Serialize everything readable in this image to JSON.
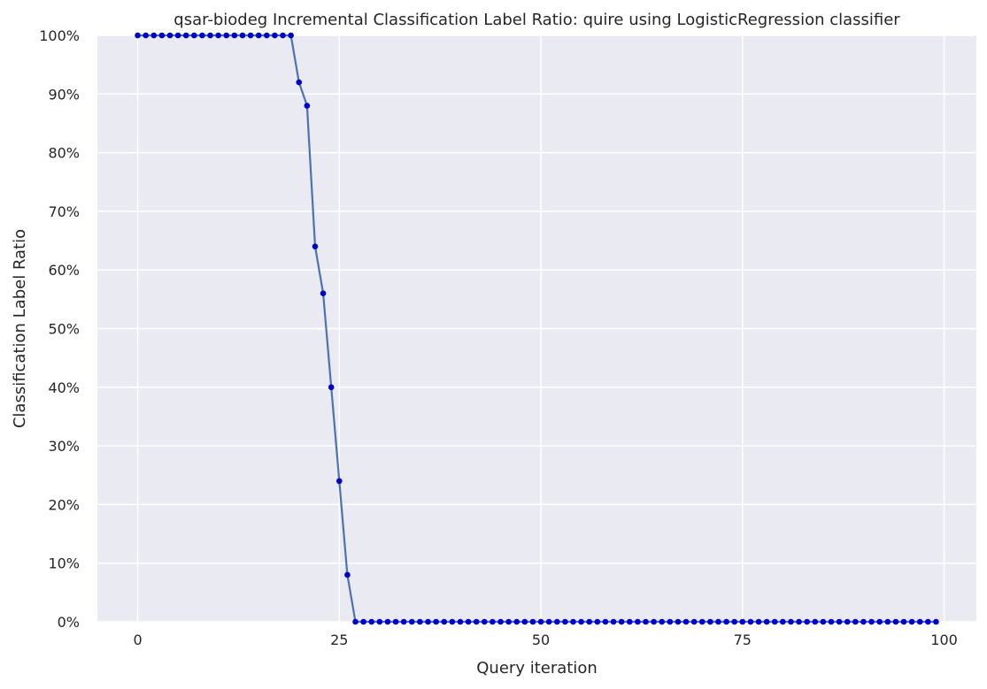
{
  "chart_data": {
    "type": "line",
    "title": "qsar-biodeg Incremental Classification Label Ratio: quire using LogisticRegression classifier",
    "xlabel": "Query iteration",
    "ylabel": "Classification Label Ratio",
    "xlim": [
      -5,
      104
    ],
    "ylim": [
      0,
      100
    ],
    "x_ticks": [
      0,
      25,
      50,
      75,
      100
    ],
    "x_tick_labels": [
      "0",
      "25",
      "50",
      "75",
      "100"
    ],
    "y_ticks": [
      0,
      10,
      20,
      30,
      40,
      50,
      60,
      70,
      80,
      90,
      100
    ],
    "y_tick_labels": [
      "0%",
      "10%",
      "20%",
      "30%",
      "40%",
      "50%",
      "60%",
      "70%",
      "80%",
      "90%",
      "100%"
    ],
    "grid": true,
    "series": [
      {
        "line_color": "#4c72b0",
        "marker_color": "#0000cc",
        "x_start": 0,
        "x_step": 1,
        "values": [
          100,
          100,
          100,
          100,
          100,
          100,
          100,
          100,
          100,
          100,
          100,
          100,
          100,
          100,
          100,
          100,
          100,
          100,
          100,
          100,
          92,
          88,
          64,
          56,
          40,
          24,
          8,
          0,
          0,
          0,
          0,
          0,
          0,
          0,
          0,
          0,
          0,
          0,
          0,
          0,
          0,
          0,
          0,
          0,
          0,
          0,
          0,
          0,
          0,
          0,
          0,
          0,
          0,
          0,
          0,
          0,
          0,
          0,
          0,
          0,
          0,
          0,
          0,
          0,
          0,
          0,
          0,
          0,
          0,
          0,
          0,
          0,
          0,
          0,
          0,
          0,
          0,
          0,
          0,
          0,
          0,
          0,
          0,
          0,
          0,
          0,
          0,
          0,
          0,
          0,
          0,
          0,
          0,
          0,
          0,
          0,
          0,
          0,
          0,
          0
        ]
      }
    ]
  }
}
